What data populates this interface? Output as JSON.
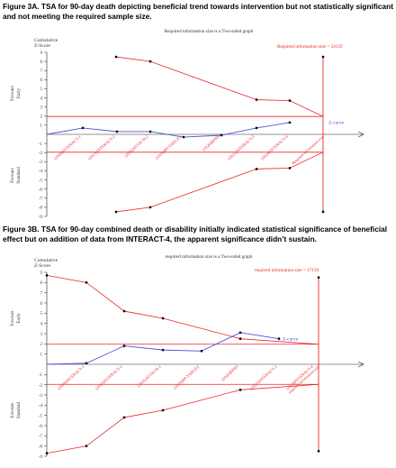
{
  "figure_a": {
    "caption": "Figure 3A. TSA for  90-day death depicting beneficial trend towards intervention but not statistically significant and not meeting the required sample size."
  },
  "figure_b": {
    "caption": "Figure 3B. TSA for 90-day combined death or disability initially indicated statistical significance of beneficial effect but on addition of data from INTERACT-4, the apparent significance didn’t sustain."
  },
  "colors": {
    "boundary": "#e8262b",
    "z_curve": "#4a55d6",
    "axis": "#222222",
    "text": "#333333"
  },
  "chart_data": [
    {
      "type": "line",
      "title": "Required information size is a Two-sided graph",
      "ylabel": "Cumulative Z-Score",
      "ylim": [
        -9,
        9
      ],
      "ticks": [
        -9,
        -8,
        -7,
        -6,
        -5,
        -4,
        -3,
        -2,
        -1,
        1,
        2,
        3,
        4,
        5,
        6,
        7,
        8,
        9
      ],
      "tick_labels": [
        "-9",
        "-8",
        "-7",
        "-6",
        "-5",
        "-4",
        "-3",
        "-2",
        "-1",
        "1",
        "2",
        "3",
        "4",
        "5",
        "6",
        "7",
        "8",
        "9"
      ],
      "favours_early": "Favours Early",
      "favours_standard": "Favours Standard",
      "categories": [
        "(2008)INTERACT-1",
        "(2013)INTERACT-2",
        "(2016)ATTACH-2",
        "(2019)BP-TARGET",
        "(2020)BPRS",
        "(2022)INTERACT-3",
        "(2024)INTERACT-4"
      ],
      "z_curve": [
        0.0,
        0.7,
        0.3,
        0.3,
        -0.3,
        -0.1,
        0.7,
        1.3
      ],
      "upper_boundary": [
        8.5,
        8.0,
        3.8,
        3.7
      ],
      "lower_boundary": [
        -8.5,
        -8.0,
        -3.8,
        -3.7
      ],
      "z_curve_label": "Z-curve",
      "ris_label": "Required information size = 34159",
      "ris_axis_label": "Required information size",
      "conventional_line": [
        1.96,
        -1.96
      ]
    },
    {
      "type": "line",
      "title": "required information size is a Two-sided graph",
      "ylabel": "Cumulative Z-Score",
      "ylim": [
        -9,
        9
      ],
      "ticks": [
        -9,
        -8,
        -7,
        -6,
        -5,
        -4,
        -3,
        -2,
        -1,
        1,
        2,
        3,
        4,
        5,
        6,
        7,
        8,
        9
      ],
      "tick_labels": [
        "-9",
        "-8",
        "-7",
        "-6",
        "-5",
        "-4",
        "-3",
        "-2",
        "-1",
        "1",
        "2",
        "3",
        "4",
        "5",
        "6",
        "7",
        "8",
        "9"
      ],
      "favours_early": "Favours Early",
      "favours_standard": "Favours Standard",
      "categories": [
        "(2008)INTERACT-1",
        "(2013)INTERACT-2",
        "(2016)ATTACH-2",
        "(2019)BP-TARGET",
        "(2020)BPRS",
        "(2022)INTERACT-3",
        "(2024)INTERACT-4"
      ],
      "z_curve": [
        0.0,
        0.1,
        1.8,
        1.4,
        1.3,
        3.1,
        2.5
      ],
      "upper_boundary": [
        8.7,
        8.0,
        5.2,
        4.5,
        2.5
      ],
      "lower_boundary": [
        -8.7,
        -8.0,
        -5.2,
        -4.5,
        -2.5
      ],
      "z_curve_label": "Z-curve",
      "ris_label": "required information size = 17158",
      "ris_axis_label": "required information size",
      "conventional_line": [
        1.96,
        -1.96
      ]
    }
  ]
}
